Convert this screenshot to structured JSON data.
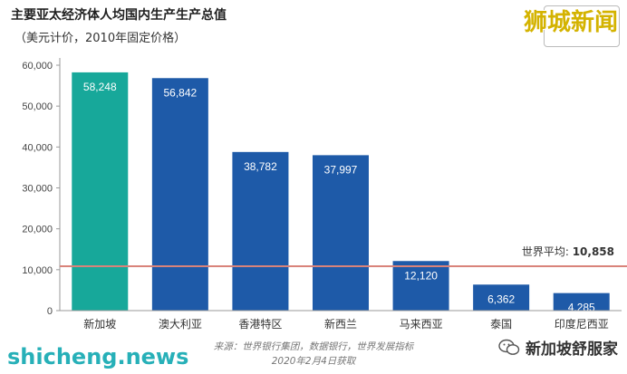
{
  "title": "主要亚太经济体人均国内生产生产总值",
  "subtitle": "（美元计价，2010年固定价格）",
  "chart_data": {
    "type": "bar",
    "categories": [
      "新加坡",
      "澳大利亚",
      "香港特区",
      "新西兰",
      "马来西亚",
      "泰国",
      "印度尼西亚"
    ],
    "values": [
      58248,
      56842,
      38782,
      37997,
      12120,
      6362,
      4285
    ],
    "value_labels": [
      "58,248",
      "56,842",
      "38,782",
      "37,997",
      "12,120",
      "6,362",
      "4,285"
    ],
    "bar_colors": [
      "#17a89a",
      "#1e5aa8",
      "#1e5aa8",
      "#1e5aa8",
      "#1e5aa8",
      "#1e5aa8",
      "#1e5aa8"
    ],
    "ylim": [
      0,
      60000
    ],
    "yticks": [
      0,
      10000,
      20000,
      30000,
      40000,
      50000,
      60000
    ],
    "ytick_labels": [
      "0",
      "10,000",
      "20,000",
      "30,000",
      "40,000",
      "50,000",
      "60,000"
    ],
    "reference_line": {
      "value": 10858,
      "label_prefix": "世界平均: ",
      "label_value": "10,858",
      "color": "#d9837a"
    },
    "grid": false,
    "xlabel": "",
    "ylabel": ""
  },
  "source_line1": "来源：世界银行集团，数据银行，世界发展指标",
  "source_line2": "2020年2月4日获取",
  "watermarks": {
    "top_right": "狮城新闻",
    "bottom_left": "shicheng.news",
    "bottom_right": "新加坡舒服家",
    "bottom_right_icon": "wechat-icon"
  }
}
